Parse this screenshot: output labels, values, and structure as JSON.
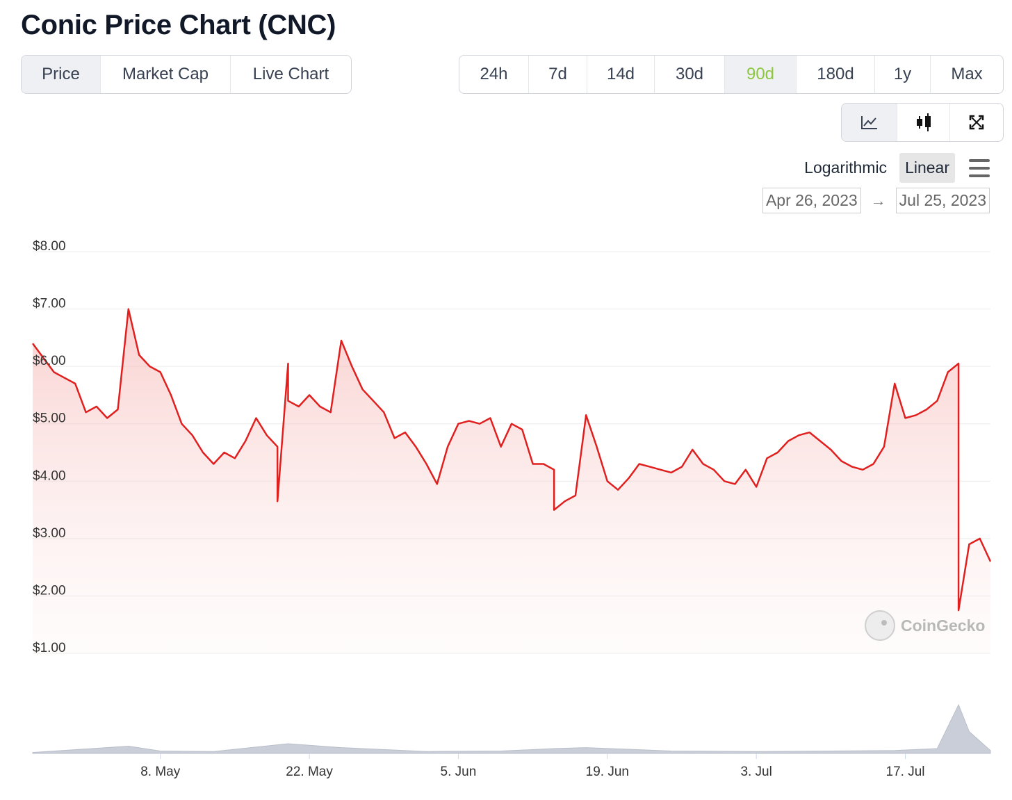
{
  "title": "Conic Price Chart (CNC)",
  "metric_tabs": [
    {
      "label": "Price",
      "active": true
    },
    {
      "label": "Market Cap",
      "active": false
    },
    {
      "label": "Live Chart",
      "active": false
    }
  ],
  "range_tabs": [
    {
      "label": "24h",
      "active": false
    },
    {
      "label": "7d",
      "active": false
    },
    {
      "label": "14d",
      "active": false
    },
    {
      "label": "30d",
      "active": false
    },
    {
      "label": "90d",
      "active": true
    },
    {
      "label": "180d",
      "active": false
    },
    {
      "label": "1y",
      "active": false
    },
    {
      "label": "Max",
      "active": false
    }
  ],
  "chart_type_icons": [
    {
      "name": "line-chart-icon",
      "active": true
    },
    {
      "name": "candlestick-icon",
      "active": false
    },
    {
      "name": "expand-icon",
      "active": false
    }
  ],
  "scale_options": [
    {
      "label": "Logarithmic",
      "active": false
    },
    {
      "label": "Linear",
      "active": true
    }
  ],
  "date_range": {
    "from": "Apr 26, 2023",
    "arrow": "→",
    "to": "Jul 25, 2023"
  },
  "watermark": "CoinGecko",
  "colors": {
    "line": "#e0201f",
    "active_tab_text": "#8dc63f",
    "volume": "#c9ced8"
  },
  "chart_data": {
    "type": "area",
    "xlim": [
      "2023-04-26",
      "2023-07-25"
    ],
    "ylim": [
      1,
      8
    ],
    "y_ticks": [
      {
        "value": 8,
        "label": "$8.00"
      },
      {
        "value": 7,
        "label": "$7.00"
      },
      {
        "value": 6,
        "label": "$6.00"
      },
      {
        "value": 5,
        "label": "$5.00"
      },
      {
        "value": 4,
        "label": "$4.00"
      },
      {
        "value": 3,
        "label": "$3.00"
      },
      {
        "value": 2,
        "label": "$2.00"
      },
      {
        "value": 1,
        "label": "$1.00"
      }
    ],
    "x_ticks": [
      {
        "date": "2023-05-08",
        "label": "8. May"
      },
      {
        "date": "2023-05-22",
        "label": "22. May"
      },
      {
        "date": "2023-06-05",
        "label": "5. Jun"
      },
      {
        "date": "2023-06-19",
        "label": "19. Jun"
      },
      {
        "date": "2023-07-03",
        "label": "3. Jul"
      },
      {
        "date": "2023-07-17",
        "label": "17. Jul"
      }
    ],
    "series": [
      {
        "values": [
          [
            "2023-04-26",
            6.4
          ],
          [
            "2023-04-27",
            6.15
          ],
          [
            "2023-04-28",
            5.9
          ],
          [
            "2023-04-29",
            5.8
          ],
          [
            "2023-04-30",
            5.7
          ],
          [
            "2023-05-01",
            5.2
          ],
          [
            "2023-05-02",
            5.3
          ],
          [
            "2023-05-03",
            5.1
          ],
          [
            "2023-05-04",
            5.25
          ],
          [
            "2023-05-05",
            7.0
          ],
          [
            "2023-05-06",
            6.2
          ],
          [
            "2023-05-07",
            6.0
          ],
          [
            "2023-05-08",
            5.9
          ],
          [
            "2023-05-09",
            5.5
          ],
          [
            "2023-05-10",
            5.0
          ],
          [
            "2023-05-11",
            4.8
          ],
          [
            "2023-05-12",
            4.5
          ],
          [
            "2023-05-13",
            4.3
          ],
          [
            "2023-05-14",
            4.5
          ],
          [
            "2023-05-15",
            4.4
          ],
          [
            "2023-05-16",
            4.7
          ],
          [
            "2023-05-17",
            5.1
          ],
          [
            "2023-05-18",
            4.8
          ],
          [
            "2023-05-19",
            4.6
          ],
          [
            "2023-05-19",
            3.65
          ],
          [
            "2023-05-20",
            6.05
          ],
          [
            "2023-05-20",
            5.4
          ],
          [
            "2023-05-21",
            5.3
          ],
          [
            "2023-05-22",
            5.5
          ],
          [
            "2023-05-23",
            5.3
          ],
          [
            "2023-05-24",
            5.2
          ],
          [
            "2023-05-25",
            6.45
          ],
          [
            "2023-05-26",
            6.0
          ],
          [
            "2023-05-27",
            5.6
          ],
          [
            "2023-05-28",
            5.4
          ],
          [
            "2023-05-29",
            5.2
          ],
          [
            "2023-05-30",
            4.75
          ],
          [
            "2023-05-31",
            4.85
          ],
          [
            "2023-06-01",
            4.6
          ],
          [
            "2023-06-02",
            4.3
          ],
          [
            "2023-06-03",
            3.95
          ],
          [
            "2023-06-04",
            4.6
          ],
          [
            "2023-06-05",
            5.0
          ],
          [
            "2023-06-06",
            5.05
          ],
          [
            "2023-06-07",
            5.0
          ],
          [
            "2023-06-08",
            5.1
          ],
          [
            "2023-06-09",
            4.6
          ],
          [
            "2023-06-10",
            5.0
          ],
          [
            "2023-06-11",
            4.9
          ],
          [
            "2023-06-12",
            4.3
          ],
          [
            "2023-06-13",
            4.3
          ],
          [
            "2023-06-14",
            4.2
          ],
          [
            "2023-06-14",
            3.5
          ],
          [
            "2023-06-15",
            3.65
          ],
          [
            "2023-06-16",
            3.75
          ],
          [
            "2023-06-17",
            5.15
          ],
          [
            "2023-06-18",
            4.6
          ],
          [
            "2023-06-19",
            4.0
          ],
          [
            "2023-06-20",
            3.85
          ],
          [
            "2023-06-21",
            4.05
          ],
          [
            "2023-06-22",
            4.3
          ],
          [
            "2023-06-23",
            4.25
          ],
          [
            "2023-06-24",
            4.2
          ],
          [
            "2023-06-25",
            4.15
          ],
          [
            "2023-06-26",
            4.25
          ],
          [
            "2023-06-27",
            4.55
          ],
          [
            "2023-06-28",
            4.3
          ],
          [
            "2023-06-29",
            4.2
          ],
          [
            "2023-06-30",
            4.0
          ],
          [
            "2023-07-01",
            3.95
          ],
          [
            "2023-07-02",
            4.2
          ],
          [
            "2023-07-03",
            3.9
          ],
          [
            "2023-07-04",
            4.4
          ],
          [
            "2023-07-05",
            4.5
          ],
          [
            "2023-07-06",
            4.7
          ],
          [
            "2023-07-07",
            4.8
          ],
          [
            "2023-07-08",
            4.85
          ],
          [
            "2023-07-09",
            4.7
          ],
          [
            "2023-07-10",
            4.55
          ],
          [
            "2023-07-11",
            4.35
          ],
          [
            "2023-07-12",
            4.25
          ],
          [
            "2023-07-13",
            4.2
          ],
          [
            "2023-07-14",
            4.3
          ],
          [
            "2023-07-15",
            4.6
          ],
          [
            "2023-07-16",
            5.7
          ],
          [
            "2023-07-17",
            5.1
          ],
          [
            "2023-07-18",
            5.15
          ],
          [
            "2023-07-19",
            5.25
          ],
          [
            "2023-07-20",
            5.4
          ],
          [
            "2023-07-21",
            5.9
          ],
          [
            "2023-07-22",
            6.05
          ],
          [
            "2023-07-22",
            4.1
          ],
          [
            "2023-07-22",
            1.75
          ],
          [
            "2023-07-23",
            2.9
          ],
          [
            "2023-07-24",
            3.0
          ],
          [
            "2023-07-25",
            2.6
          ]
        ]
      }
    ],
    "volume": {
      "values": [
        [
          "2023-04-26",
          0.02
        ],
        [
          "2023-05-05",
          0.15
        ],
        [
          "2023-05-08",
          0.05
        ],
        [
          "2023-05-13",
          0.04
        ],
        [
          "2023-05-20",
          0.2
        ],
        [
          "2023-05-25",
          0.12
        ],
        [
          "2023-06-02",
          0.04
        ],
        [
          "2023-06-09",
          0.05
        ],
        [
          "2023-06-14",
          0.1
        ],
        [
          "2023-06-17",
          0.12
        ],
        [
          "2023-06-25",
          0.05
        ],
        [
          "2023-07-03",
          0.04
        ],
        [
          "2023-07-10",
          0.05
        ],
        [
          "2023-07-16",
          0.06
        ],
        [
          "2023-07-20",
          0.1
        ],
        [
          "2023-07-22",
          1.0
        ],
        [
          "2023-07-23",
          0.45
        ],
        [
          "2023-07-25",
          0.06
        ]
      ]
    },
    "grid": true
  }
}
